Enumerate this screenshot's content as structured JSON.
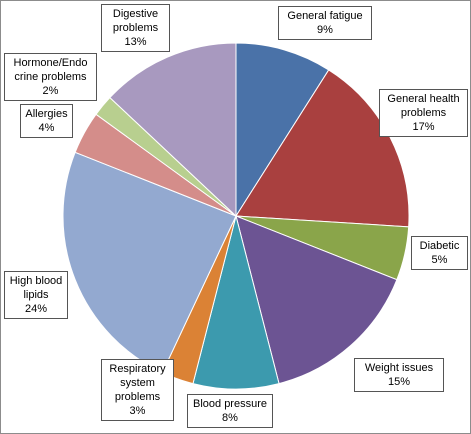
{
  "chart_data": {
    "type": "pie",
    "categories": [
      "General fatigue",
      "General health problems",
      "Diabetic",
      "Weight issues",
      "Blood pressure",
      "Respiratory system problems",
      "High blood lipids",
      "Allergies",
      "Hormone/Endo crine problems",
      "Digestive problems"
    ],
    "values": [
      9,
      17,
      5,
      15,
      8,
      3,
      24,
      4,
      2,
      13
    ],
    "value_labels": [
      "9%",
      "17%",
      "5%",
      "15%",
      "8%",
      "3%",
      "24%",
      "4%",
      "2%",
      "13%"
    ],
    "colors": [
      "#4a72a8",
      "#a9403f",
      "#8aa54a",
      "#6c5493",
      "#3c9aae",
      "#db8235",
      "#93a9d0",
      "#d48d8a",
      "#b8cf8f",
      "#a899bf"
    ]
  }
}
